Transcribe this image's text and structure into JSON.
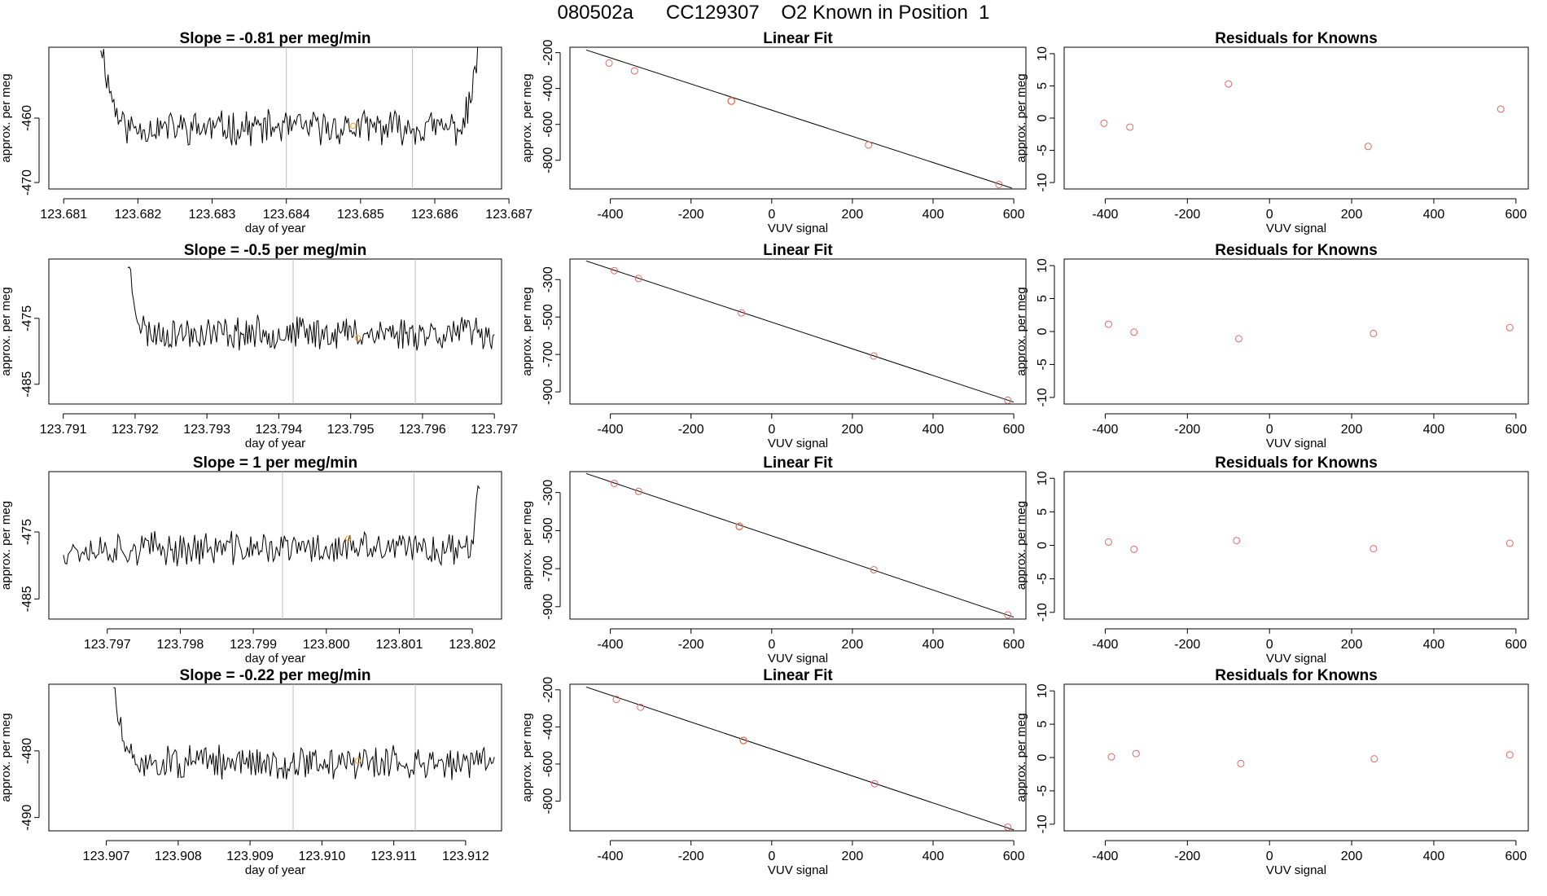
{
  "title": "080502a      CC129307    O2 Known in Position  1",
  "labels": {
    "time_xlabel": "day of year",
    "ylabel": "approx. per meg",
    "fit_xlabel": "VUV signal",
    "fit_title": "Linear Fit",
    "resid_title": "Residuals for Knowns"
  },
  "colors": {
    "trace": "#000000",
    "marker_known": "#e06666",
    "marker_highlight": "#f0a030",
    "vline": "#bbbbbb",
    "frame": "#000000"
  },
  "chart_data": [
    {
      "type": "line",
      "title": "Slope =  -0.81  per meg/min",
      "xlabel": "day of year",
      "ylabel": "approx. per meg",
      "xlim": [
        123.6808,
        123.6869
      ],
      "ylim": [
        -471,
        -449
      ],
      "xticks": [
        "123.681",
        "123.682",
        "123.683",
        "123.684",
        "123.685",
        "123.686",
        "123.687"
      ],
      "yticks": [
        "-460",
        "-470"
      ],
      "vlines": [
        123.684,
        123.6857
      ],
      "trace_start": 123.6815,
      "trace_end": 123.6866,
      "baseline": -461.5,
      "baseline_amp": 2.3,
      "edge_left": -448,
      "edge_right": -448,
      "edge_left_width": 0.0004,
      "edge_right_width": 0.0003,
      "marker": {
        "x": 123.6849,
        "y": -461.2
      },
      "seed": 11
    },
    {
      "type": "scatter",
      "title": "Linear Fit",
      "xlabel": "VUV signal",
      "ylabel": "approx. per meg",
      "xlim": [
        -500,
        630
      ],
      "ylim": [
        -960,
        -170
      ],
      "xticks": [
        -400,
        -200,
        0,
        200,
        400,
        600
      ],
      "yticks": [
        -200,
        -400,
        -600,
        -800
      ],
      "line": {
        "x": [
          -460,
          595
        ],
        "y": [
          -185,
          -955
        ]
      },
      "points": [
        {
          "x": -403,
          "y": -258
        },
        {
          "x": -340,
          "y": -302
        },
        {
          "x": -100,
          "y": -470
        },
        {
          "x": 240,
          "y": -715
        },
        {
          "x": 563,
          "y": -935
        }
      ],
      "highlight_index": 2
    },
    {
      "type": "scatter",
      "title": "Residuals for Knowns",
      "xlabel": "VUV signal",
      "ylabel": "approx. per meg",
      "xlim": [
        -500,
        630
      ],
      "ylim": [
        -11,
        11
      ],
      "xticks": [
        -400,
        -200,
        0,
        200,
        400,
        600
      ],
      "yticks": [
        10,
        5,
        0,
        -5,
        -10
      ],
      "points": [
        {
          "x": -403,
          "y": -0.8
        },
        {
          "x": -340,
          "y": -1.4
        },
        {
          "x": -100,
          "y": 5.3
        },
        {
          "x": 240,
          "y": -4.4
        },
        {
          "x": 563,
          "y": 1.4
        }
      ]
    },
    {
      "type": "line",
      "title": "Slope =  -0.5  per meg/min",
      "xlabel": "day of year",
      "ylabel": "approx. per meg",
      "xlim": [
        123.7908,
        123.7971
      ],
      "ylim": [
        -488,
        -466
      ],
      "xticks": [
        "123.791",
        "123.792",
        "123.793",
        "123.794",
        "123.795",
        "123.796",
        "123.797"
      ],
      "yticks": [
        "-475",
        "-485"
      ],
      "vlines": [
        123.7942,
        123.7959
      ],
      "trace_start": 123.7919,
      "trace_end": 123.797,
      "baseline": -477.2,
      "baseline_amp": 2.2,
      "edge_left": -466,
      "edge_right": null,
      "edge_left_width": 0.0003,
      "edge_right_width": 0,
      "marker": {
        "x": 123.7951,
        "y": -478.0
      },
      "seed": 23
    },
    {
      "type": "scatter",
      "title": "Linear Fit",
      "xlabel": "VUV signal",
      "ylabel": "approx. per meg",
      "xlim": [
        -500,
        630
      ],
      "ylim": [
        -965,
        -190
      ],
      "xticks": [
        -400,
        -200,
        0,
        200,
        400,
        600
      ],
      "yticks": [
        -300,
        -500,
        -700,
        -900
      ],
      "line": {
        "x": [
          -460,
          600
        ],
        "y": [
          -200,
          -955
        ]
      },
      "points": [
        {
          "x": -390,
          "y": -252
        },
        {
          "x": -330,
          "y": -294
        },
        {
          "x": -75,
          "y": -478
        },
        {
          "x": 253,
          "y": -708
        },
        {
          "x": 585,
          "y": -945
        }
      ],
      "highlight_index": null
    },
    {
      "type": "scatter",
      "title": "Residuals for Knowns",
      "xlabel": "VUV signal",
      "ylabel": "approx. per meg",
      "xlim": [
        -500,
        630
      ],
      "ylim": [
        -11,
        11
      ],
      "xticks": [
        -400,
        -200,
        0,
        200,
        400,
        600
      ],
      "yticks": [
        10,
        5,
        0,
        -5,
        -10
      ],
      "points": [
        {
          "x": -392,
          "y": 1.1
        },
        {
          "x": -330,
          "y": -0.1
        },
        {
          "x": -75,
          "y": -1.1
        },
        {
          "x": 253,
          "y": -0.3
        },
        {
          "x": 585,
          "y": 0.6
        }
      ]
    },
    {
      "type": "line",
      "title": "Slope =  1  per meg/min",
      "xlabel": "day of year",
      "ylabel": "approx. per meg",
      "xlim": [
        123.7962,
        123.8024
      ],
      "ylim": [
        -488,
        -466
      ],
      "xticks": [
        "123.797",
        "123.798",
        "123.799",
        "123.800",
        "123.801",
        "123.802"
      ],
      "yticks": [
        "-475",
        "-485"
      ],
      "vlines": [
        123.7994,
        123.8012
      ],
      "trace_start": 123.7964,
      "trace_end": 123.8021,
      "baseline": -477.5,
      "baseline_amp": 2.2,
      "edge_left": null,
      "edge_right": -466,
      "edge_left_width": 0,
      "edge_right_width": 0.0002,
      "marker": {
        "x": 123.8003,
        "y": -476.0
      },
      "seed": 37
    },
    {
      "type": "scatter",
      "title": "Linear Fit",
      "xlabel": "VUV signal",
      "ylabel": "approx. per meg",
      "xlim": [
        -500,
        630
      ],
      "ylim": [
        -965,
        -190
      ],
      "xticks": [
        -400,
        -200,
        0,
        200,
        400,
        600
      ],
      "yticks": [
        -300,
        -500,
        -700,
        -900
      ],
      "line": {
        "x": [
          -460,
          600
        ],
        "y": [
          -200,
          -955
        ]
      },
      "points": [
        {
          "x": -390,
          "y": -252
        },
        {
          "x": -330,
          "y": -294
        },
        {
          "x": -80,
          "y": -478
        },
        {
          "x": 253,
          "y": -706
        },
        {
          "x": 585,
          "y": -943
        }
      ],
      "highlight_index": 2
    },
    {
      "type": "scatter",
      "title": "Residuals for Knowns",
      "xlabel": "VUV signal",
      "ylabel": "approx. per meg",
      "xlim": [
        -500,
        630
      ],
      "ylim": [
        -11,
        11
      ],
      "xticks": [
        -400,
        -200,
        0,
        200,
        400,
        600
      ],
      "yticks": [
        10,
        5,
        0,
        -5,
        -10
      ],
      "points": [
        {
          "x": -392,
          "y": 0.5
        },
        {
          "x": -330,
          "y": -0.6
        },
        {
          "x": -80,
          "y": 0.7
        },
        {
          "x": 253,
          "y": -0.5
        },
        {
          "x": 585,
          "y": 0.3
        }
      ]
    },
    {
      "type": "line",
      "title": "Slope =  -0.22  per meg/min",
      "xlabel": "day of year",
      "ylabel": "approx. per meg",
      "xlim": [
        123.9062,
        123.9125
      ],
      "ylim": [
        -492,
        -470
      ],
      "xticks": [
        "123.907",
        "123.908",
        "123.909",
        "123.910",
        "123.911",
        "123.912"
      ],
      "yticks": [
        "-480",
        "-490"
      ],
      "vlines": [
        123.9096,
        123.9113
      ],
      "trace_start": 123.9071,
      "trace_end": 123.9124,
      "baseline": -481.8,
      "baseline_amp": 2.2,
      "edge_left": -470,
      "edge_right": null,
      "edge_left_width": 0.0003,
      "edge_right_width": 0,
      "marker": {
        "x": 123.9105,
        "y": -481.5
      },
      "seed": 51
    },
    {
      "type": "scatter",
      "title": "Linear Fit",
      "xlabel": "VUV signal",
      "ylabel": "approx. per meg",
      "xlim": [
        -500,
        630
      ],
      "ylim": [
        -960,
        -170
      ],
      "xticks": [
        -400,
        -200,
        0,
        200,
        400,
        600
      ],
      "yticks": [
        -200,
        -400,
        -600,
        -800
      ],
      "line": {
        "x": [
          -460,
          600
        ],
        "y": [
          -185,
          -955
        ]
      },
      "points": [
        {
          "x": -385,
          "y": -252
        },
        {
          "x": -325,
          "y": -294
        },
        {
          "x": -70,
          "y": -473
        },
        {
          "x": 255,
          "y": -706
        },
        {
          "x": 585,
          "y": -940
        }
      ],
      "highlight_index": 2
    },
    {
      "type": "scatter",
      "title": "Residuals for Knowns",
      "xlabel": "VUV signal",
      "ylabel": "approx. per meg",
      "xlim": [
        -500,
        630
      ],
      "ylim": [
        -11,
        11
      ],
      "xticks": [
        -400,
        -200,
        0,
        200,
        400,
        600
      ],
      "yticks": [
        10,
        5,
        0,
        -5,
        -10
      ],
      "points": [
        {
          "x": -385,
          "y": 0.1
        },
        {
          "x": -325,
          "y": 0.6
        },
        {
          "x": -70,
          "y": -0.9
        },
        {
          "x": 255,
          "y": -0.2
        },
        {
          "x": 585,
          "y": 0.4
        }
      ]
    }
  ]
}
